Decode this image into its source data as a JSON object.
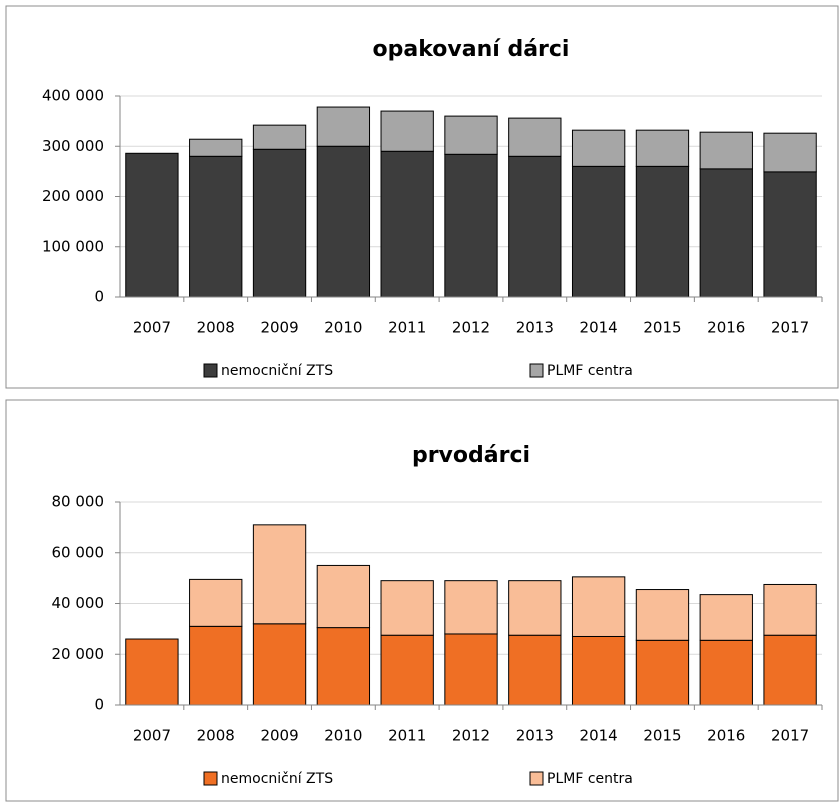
{
  "chart_data": [
    {
      "type": "stacked-bar",
      "title": "opakovaní dárci",
      "categories": [
        "2007",
        "2008",
        "2009",
        "2010",
        "2011",
        "2012",
        "2013",
        "2014",
        "2015",
        "2016",
        "2017"
      ],
      "series": [
        {
          "name": "nemocniční ZTS",
          "color": "#3d3d3d",
          "values": [
            286000,
            280000,
            294000,
            300000,
            290000,
            284000,
            280000,
            260000,
            260000,
            255000,
            249000
          ]
        },
        {
          "name": "PLMF centra",
          "color": "#a6a6a6",
          "values": [
            0,
            34000,
            48000,
            78000,
            80000,
            76000,
            76000,
            72000,
            72000,
            73000,
            77000
          ]
        }
      ],
      "ylim": [
        0,
        400000
      ],
      "yticks": [
        0,
        {
          "value": 100000,
          "label": "100 000"
        },
        {
          "value": 200000,
          "label": "200 000"
        },
        {
          "value": 300000,
          "label": "300 000"
        },
        {
          "value": 400000,
          "label": "400 000"
        }
      ],
      "grid": true,
      "legend": "bottom"
    },
    {
      "type": "stacked-bar",
      "title": "prvodárci",
      "categories": [
        "2007",
        "2008",
        "2009",
        "2010",
        "2011",
        "2012",
        "2013",
        "2014",
        "2015",
        "2016",
        "2017"
      ],
      "series": [
        {
          "name": "nemocniční ZTS",
          "color": "#ef6f24",
          "values": [
            26000,
            31000,
            32000,
            30500,
            27500,
            28000,
            27500,
            27000,
            25500,
            25500,
            27500
          ]
        },
        {
          "name": "PLMF centra",
          "color": "#f9bd97",
          "values": [
            0,
            18500,
            39000,
            24500,
            21500,
            21000,
            21500,
            23500,
            20000,
            18000,
            20000
          ]
        }
      ],
      "ylim": [
        0,
        80000
      ],
      "yticks": [
        0,
        {
          "value": 20000,
          "label": "20 000"
        },
        {
          "value": 40000,
          "label": "40 000"
        },
        {
          "value": 60000,
          "label": "60 000"
        },
        {
          "value": 80000,
          "label": "80 000"
        }
      ],
      "grid": true,
      "legend": "bottom"
    }
  ]
}
